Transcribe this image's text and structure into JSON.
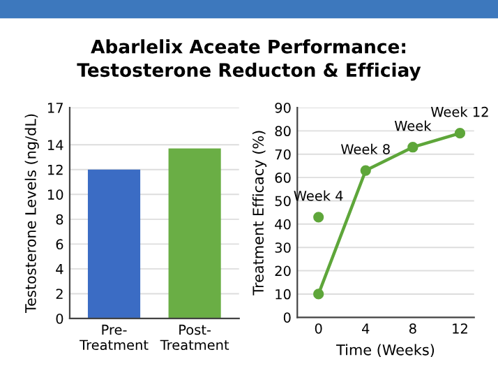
{
  "chart_data": [
    {
      "type": "bar",
      "title": "Abarlelix Aceate Performance:\nTestosterone Reducton & Efficiay",
      "categories": [
        "Pre-\nTreatment",
        "Post-\nTreatment"
      ],
      "values": [
        12,
        13.7
      ],
      "colors": [
        "#3b6cc4",
        "#6aae45"
      ],
      "ylabel": "Testosterone Levels (ng/dL)",
      "ylim": [
        0,
        17
      ],
      "yticks": [
        0,
        2,
        4,
        6,
        8,
        10,
        12,
        14,
        17
      ],
      "grid": "y"
    },
    {
      "type": "line",
      "xlabel": "Time (Weeks)",
      "ylabel": "Treatment Efficacy (%)",
      "xlim": [
        -1.8,
        13.2
      ],
      "xticks": [
        0,
        4,
        8,
        12
      ],
      "ylim": [
        0,
        90
      ],
      "yticks": [
        0,
        10,
        20,
        30,
        40,
        50,
        60,
        70,
        80,
        90
      ],
      "grid": "y",
      "marker": "circle",
      "line_style": "solid",
      "series": [
        {
          "type": "line",
          "color": "#5ea63a",
          "x": [
            0,
            4,
            8,
            12
          ],
          "values": [
            10,
            63,
            73,
            79
          ]
        },
        {
          "type": "scatter",
          "color": "#5ea63a",
          "x": [
            0
          ],
          "values": [
            43
          ]
        }
      ],
      "annotations": [
        {
          "text": "Week 4",
          "x": 0,
          "y": 43
        },
        {
          "text": "Week 8",
          "x": 4,
          "y": 63
        },
        {
          "text": "Week",
          "x": 8,
          "y": 73
        },
        {
          "text": "Week 12",
          "x": 12,
          "y": 79
        }
      ]
    }
  ]
}
